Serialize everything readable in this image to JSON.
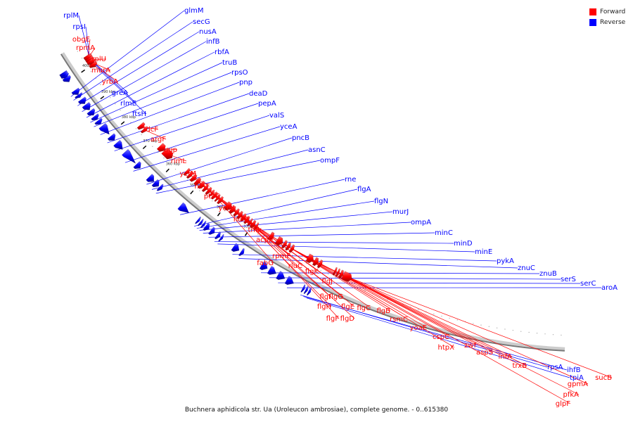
{
  "caption": "Buchnera aphidicola str. Ua (Uroleucon ambrosiae), complete genome. - 0..615380",
  "legend": {
    "forward_label": "Forward",
    "reverse_label": "Reverse",
    "forward_color": "#ff0000",
    "reverse_color": "#0000ff"
  },
  "ticks": [
    "400 kbp",
    "390 kbp",
    "380 kbp",
    "370 kbp",
    "360 kbp",
    "350 kbp",
    "340 kbp",
    "330 kbp"
  ],
  "reverse_genes": [
    "rplM",
    "rpsI",
    "glmM",
    "secG",
    "nusA",
    "infB",
    "rbfA",
    "truB",
    "rpsO",
    "pnp",
    "deaD",
    "pepA",
    "valS",
    "yceA",
    "pncB",
    "asnC",
    "ompF",
    "rne",
    "flgA",
    "flgN",
    "murJ",
    "ompA",
    "minC",
    "minD",
    "minE",
    "pykA",
    "znuC",
    "znuB",
    "serS",
    "serC",
    "aroA",
    "rpsA",
    "ihfB",
    "tpiA",
    "greA",
    "rlmE",
    "ftsH"
  ],
  "forward_genes": [
    "obgE",
    "rpmA",
    "rplU",
    "murA",
    "yrbA",
    "tdcF",
    "argF",
    "uup",
    "rlmL",
    "ycfM",
    "hinT",
    "ptsG",
    "ycfH",
    "holB",
    "tmk",
    "acpP",
    "rpmF",
    "fabG",
    "rluC",
    "flgK",
    "flgJ",
    "flgI",
    "flgG",
    "flgH",
    "flgE",
    "flgF",
    "flgD",
    "flgC",
    "flgB",
    "rsmC",
    "yoaE",
    "cspC",
    "htpX",
    "zwf",
    "aspS",
    "infA",
    "trxB",
    "sucB",
    "gpmA",
    "pfkA",
    "glpF"
  ]
}
